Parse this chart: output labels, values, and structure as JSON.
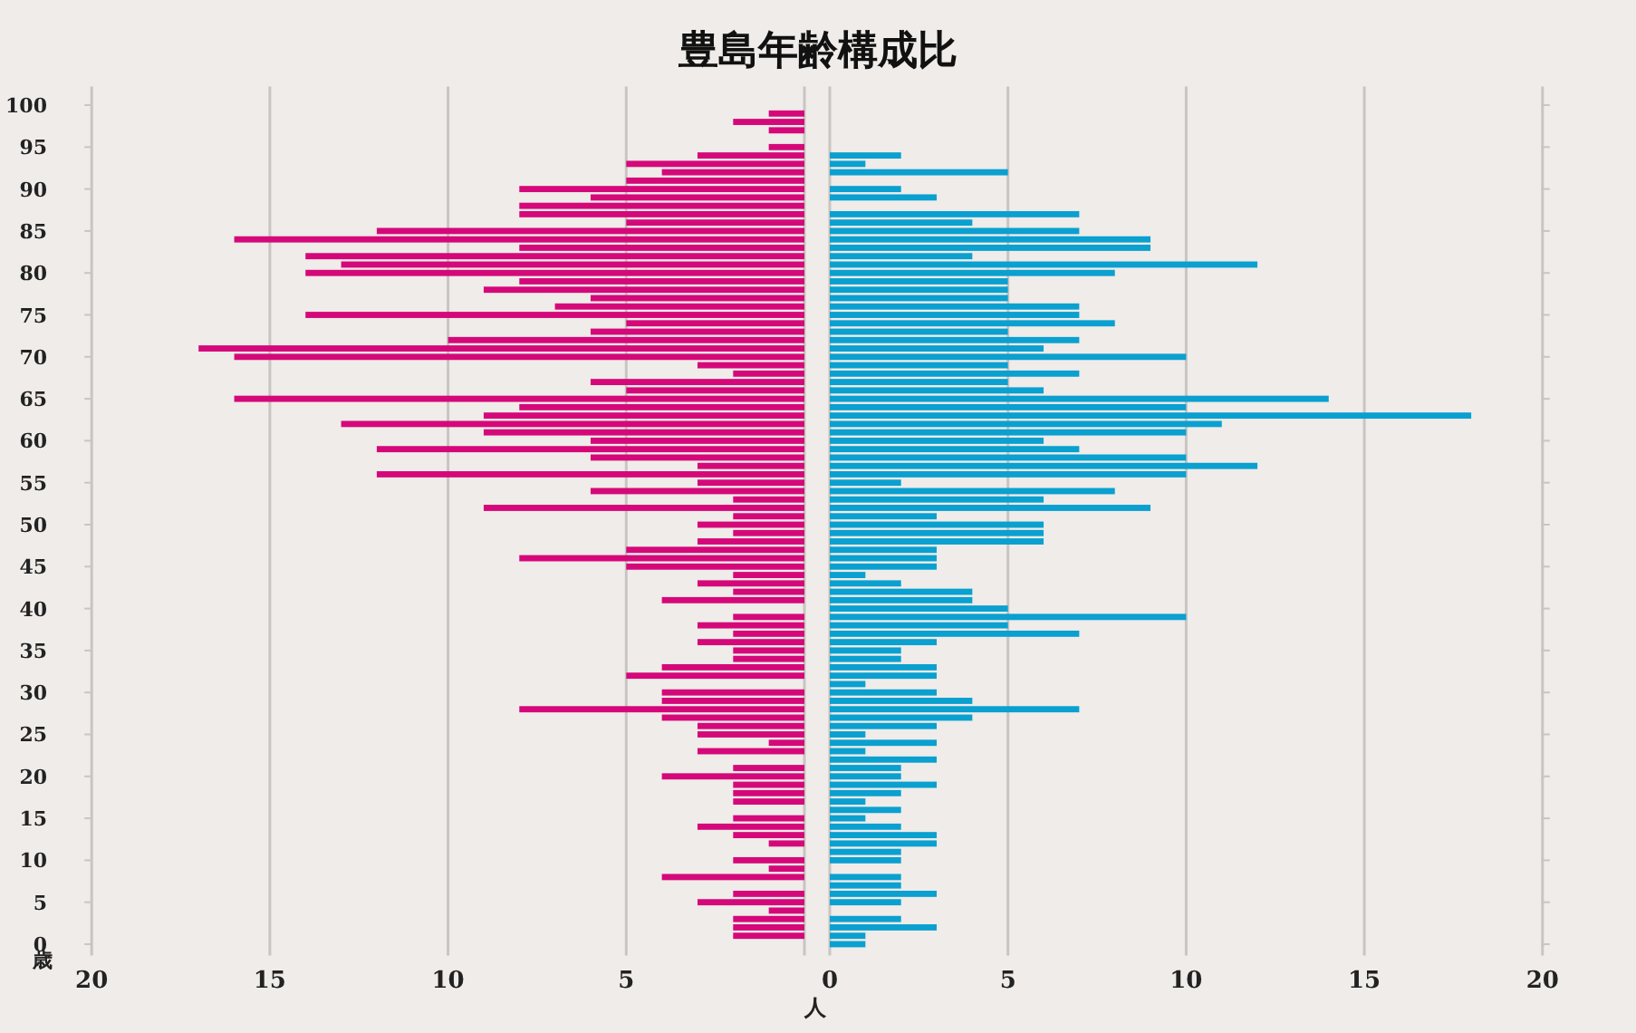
{
  "chart_data": [
    {
      "type": "bar",
      "orientation": "horizontal",
      "title": "豊島年齢構成比",
      "xlabel": "人",
      "annotations": [
        "歳"
      ],
      "categories": [
        "100",
        null,
        null,
        null,
        null,
        "95",
        null,
        null,
        null,
        null,
        "90",
        null,
        null,
        null,
        null,
        "85",
        null,
        null,
        null,
        null,
        "80",
        null,
        null,
        null,
        null,
        "75",
        null,
        null,
        null,
        null,
        "70",
        null,
        null,
        null,
        null,
        "65",
        null,
        null,
        null,
        null,
        "60",
        null,
        null,
        null,
        null,
        "55",
        null,
        null,
        null,
        null,
        "50",
        null,
        null,
        null,
        null,
        "45",
        null,
        null,
        null,
        null,
        "40",
        null,
        null,
        null,
        null,
        "35",
        null,
        null,
        null,
        null,
        "30",
        null,
        null,
        null,
        null,
        "25",
        null,
        null,
        null,
        null,
        "20",
        null,
        null,
        null,
        null,
        "15",
        null,
        null,
        null,
        null,
        "10",
        null,
        null,
        null,
        null,
        "5",
        null,
        null,
        null,
        null,
        "0"
      ],
      "series": [
        {
          "color": "#d5087a",
          "values": [
            0,
            1,
            2,
            1,
            0,
            1,
            3,
            5,
            4,
            5,
            8,
            6,
            8,
            8,
            5,
            12,
            16,
            8,
            14,
            13,
            14,
            8,
            9,
            6,
            7,
            14,
            5,
            6,
            10,
            17,
            16,
            3,
            2,
            6,
            5,
            16,
            8,
            9,
            13,
            9,
            6,
            12,
            6,
            3,
            12,
            3,
            6,
            2,
            9,
            2,
            3,
            2,
            3,
            5,
            8,
            5,
            2,
            3,
            2,
            4,
            0,
            2,
            3,
            2,
            3,
            2,
            2,
            4,
            5,
            0,
            4,
            4,
            8,
            4,
            3,
            3,
            1,
            3,
            0,
            2,
            4,
            2,
            2,
            2,
            0,
            2,
            3,
            2,
            1,
            0,
            2,
            1,
            4,
            0,
            2,
            3,
            1,
            2,
            2,
            2,
            0
          ]
        }
      ],
      "xlim": [
        20,
        0
      ],
      "xticks": [
        20,
        15,
        10,
        5,
        {
          "value": 0,
          "label": null
        }
      ],
      "grid": "x"
    },
    {
      "type": "bar",
      "orientation": "horizontal",
      "categories": [
        "100",
        null,
        null,
        null,
        null,
        "95",
        null,
        null,
        null,
        null,
        "90",
        null,
        null,
        null,
        null,
        "85",
        null,
        null,
        null,
        null,
        "80",
        null,
        null,
        null,
        null,
        "75",
        null,
        null,
        null,
        null,
        "70",
        null,
        null,
        null,
        null,
        "65",
        null,
        null,
        null,
        null,
        "60",
        null,
        null,
        null,
        null,
        "55",
        null,
        null,
        null,
        null,
        "50",
        null,
        null,
        null,
        null,
        "45",
        null,
        null,
        null,
        null,
        "40",
        null,
        null,
        null,
        null,
        "35",
        null,
        null,
        null,
        null,
        "30",
        null,
        null,
        null,
        null,
        "25",
        null,
        null,
        null,
        null,
        "20",
        null,
        null,
        null,
        null,
        "15",
        null,
        null,
        null,
        null,
        "10",
        null,
        null,
        null,
        null,
        "5",
        null,
        null,
        null,
        null,
        "0"
      ],
      "series": [
        {
          "color": "#0aa0d0",
          "values": [
            0,
            0,
            0,
            0,
            0,
            0,
            2,
            1,
            5,
            0,
            2,
            3,
            0,
            7,
            4,
            7,
            9,
            9,
            4,
            12,
            8,
            5,
            5,
            5,
            7,
            7,
            8,
            5,
            7,
            6,
            10,
            5,
            7,
            5,
            6,
            14,
            10,
            18,
            11,
            10,
            6,
            7,
            10,
            12,
            10,
            2,
            8,
            6,
            9,
            3,
            6,
            6,
            6,
            3,
            3,
            3,
            1,
            2,
            4,
            4,
            5,
            10,
            5,
            7,
            3,
            2,
            2,
            3,
            3,
            1,
            3,
            4,
            7,
            4,
            3,
            1,
            3,
            1,
            3,
            2,
            2,
            3,
            2,
            1,
            2,
            1,
            2,
            3,
            3,
            2,
            2,
            0,
            2,
            2,
            3,
            2,
            0,
            2,
            3,
            1,
            1
          ]
        }
      ],
      "xlim": [
        0,
        20
      ],
      "xticks": [
        0,
        5,
        10,
        15,
        20
      ],
      "grid": "x",
      "tick_labels": "x"
    }
  ]
}
